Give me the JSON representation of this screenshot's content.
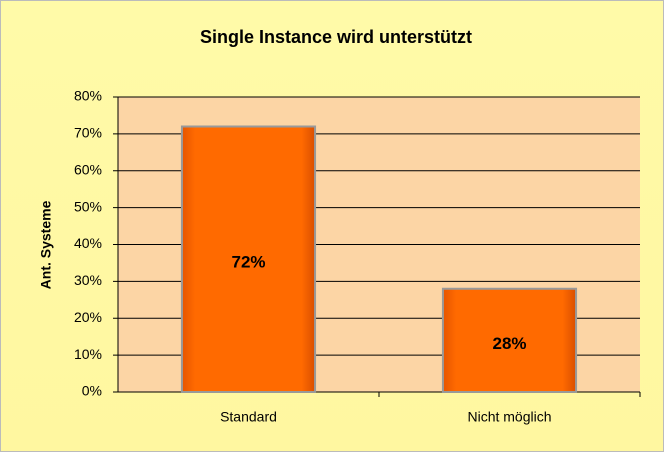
{
  "chart_data": {
    "type": "bar",
    "title": "Single Instance wird unterstützt",
    "ylabel": "Ant. Systeme",
    "categories": [
      "Standard",
      "Nicht möglich"
    ],
    "values": [
      72,
      28
    ],
    "value_labels": [
      "72%",
      "28%"
    ],
    "color": "#ff6a00",
    "ylim": [
      0,
      80
    ],
    "yticks": [
      {
        "value": 0,
        "label": "0%"
      },
      {
        "value": 10,
        "label": "10%"
      },
      {
        "value": 20,
        "label": "20%"
      },
      {
        "value": 30,
        "label": "30%"
      },
      {
        "value": 40,
        "label": "40%"
      },
      {
        "value": 50,
        "label": "50%"
      },
      {
        "value": 60,
        "label": "60%"
      },
      {
        "value": 70,
        "label": "70%"
      },
      {
        "value": 80,
        "label": "80%"
      }
    ],
    "grid": true
  }
}
